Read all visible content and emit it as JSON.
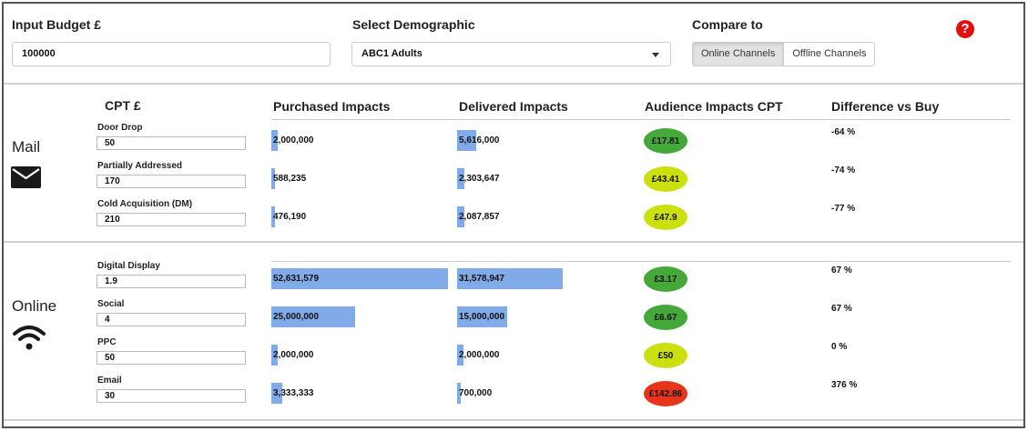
{
  "header": {
    "budget_label": "Input Budget £",
    "budget_value": "100000",
    "demographic_label": "Select Demographic",
    "demographic_value": "ABC1 Adults",
    "compare_label": "Compare to",
    "compare_options": [
      "Online Channels",
      "Offline Channels"
    ],
    "compare_selected": "Online Channels",
    "help_symbol": "?"
  },
  "columns": {
    "cpt": "CPT £",
    "purchased": "Purchased Impacts",
    "delivered": "Delivered Impacts",
    "audience_cpt": "Audience Impacts CPT",
    "difference": "Difference vs Buy"
  },
  "scale": {
    "max_impacts": 52631579
  },
  "colors": {
    "bar": "#80aae8",
    "good": "#44a83a",
    "ok": "#cce010",
    "bad": "#e8341c"
  },
  "groups": [
    {
      "title": "Mail",
      "icon": "envelope-icon",
      "rows": [
        {
          "label": "Door Drop",
          "cpt": "50",
          "purchased": "2,000,000",
          "purchased_value": 2000000,
          "delivered": "5,616,000",
          "delivered_value": 5616000,
          "audience_cpt": "£17.81",
          "rating": "good",
          "difference": "-64 %"
        },
        {
          "label": "Partially Addressed",
          "cpt": "170",
          "purchased": "588,235",
          "purchased_value": 588235,
          "delivered": "2,303,647",
          "delivered_value": 2303647,
          "audience_cpt": "£43.41",
          "rating": "ok",
          "difference": "-74 %"
        },
        {
          "label": "Cold Acquisition (DM)",
          "cpt": "210",
          "purchased": "476,190",
          "purchased_value": 476190,
          "delivered": "2,087,857",
          "delivered_value": 2087857,
          "audience_cpt": "£47.9",
          "rating": "ok",
          "difference": "-77 %"
        }
      ]
    },
    {
      "title": "Online",
      "icon": "wifi-icon",
      "rows": [
        {
          "label": "Digital Display",
          "cpt": "1.9",
          "purchased": "52,631,579",
          "purchased_value": 52631579,
          "delivered": "31,578,947",
          "delivered_value": 31578947,
          "audience_cpt": "£3.17",
          "rating": "good",
          "difference": "67 %"
        },
        {
          "label": "Social",
          "cpt": "4",
          "purchased": "25,000,000",
          "purchased_value": 25000000,
          "delivered": "15,000,000",
          "delivered_value": 15000000,
          "audience_cpt": "£6.67",
          "rating": "good",
          "difference": "67 %"
        },
        {
          "label": "PPC",
          "cpt": "50",
          "purchased": "2,000,000",
          "purchased_value": 2000000,
          "delivered": "2,000,000",
          "delivered_value": 2000000,
          "audience_cpt": "£50",
          "rating": "ok",
          "difference": "0 %"
        },
        {
          "label": "Email",
          "cpt": "30",
          "purchased": "3,333,333",
          "purchased_value": 3333333,
          "delivered": "700,000",
          "delivered_value": 700000,
          "audience_cpt": "£142.86",
          "rating": "bad",
          "difference": "376 %"
        }
      ]
    }
  ]
}
